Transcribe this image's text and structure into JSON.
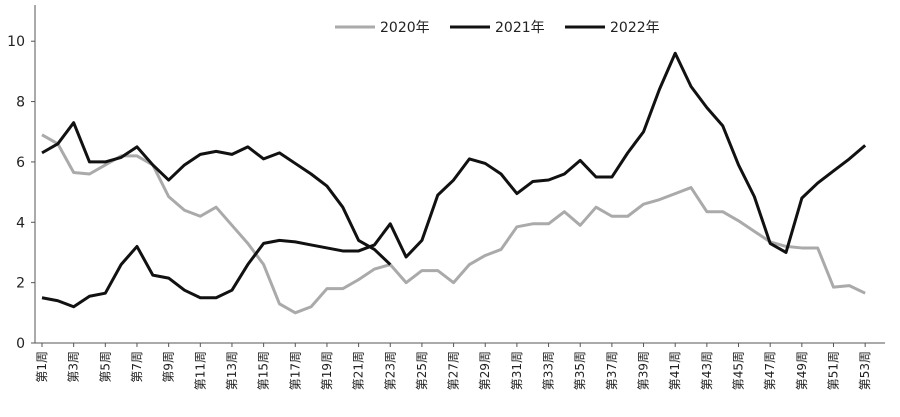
{
  "chart_data": {
    "type": "line",
    "categories": [
      "第1周",
      null,
      "第3周",
      null,
      "第5周",
      null,
      "第7周",
      null,
      "第9周",
      null,
      "第11周",
      null,
      "第13周",
      null,
      "第15周",
      null,
      "第17周",
      null,
      "第19周",
      null,
      "第21周",
      null,
      "第23周",
      null,
      "第25周",
      null,
      "第27周",
      null,
      "第29周",
      null,
      "第31周",
      null,
      "第33周",
      null,
      "第35周",
      null,
      "第37周",
      null,
      "第39周",
      null,
      "第41周",
      null,
      "第43周",
      null,
      "第45周",
      null,
      "第47周",
      null,
      "第49周",
      null,
      "第51周",
      null,
      "第53周"
    ],
    "series": [
      {
        "name": "2020年",
        "color": "#aaaaaa",
        "values": [
          6.9,
          6.6,
          5.65,
          5.6,
          5.9,
          6.2,
          6.2,
          5.9,
          4.85,
          4.4,
          4.2,
          4.5,
          3.9,
          3.3,
          2.6,
          1.3,
          1.0,
          1.2,
          1.8,
          1.8,
          2.1,
          2.45,
          2.6,
          2.0,
          2.4,
          2.4,
          2.0,
          2.6,
          2.9,
          3.1,
          3.85,
          3.95,
          3.95,
          4.35,
          3.9,
          4.5,
          4.2,
          4.2,
          4.6,
          4.75,
          4.95,
          5.15,
          4.35,
          4.35,
          4.05,
          3.7,
          3.35,
          3.2,
          3.15,
          3.15,
          1.85,
          1.9,
          1.65
        ]
      },
      {
        "name": "2021年",
        "color": "#111111",
        "values": [
          1.5,
          1.4,
          1.2,
          1.55,
          1.65,
          2.6,
          3.2,
          2.25,
          2.15,
          1.75,
          1.5,
          1.5,
          1.75,
          2.6,
          3.3,
          3.4,
          3.35,
          3.25,
          3.15,
          3.05,
          3.05,
          3.25,
          3.95,
          2.85,
          3.4,
          4.9,
          5.4,
          6.1,
          5.95,
          5.6,
          4.95,
          5.35,
          5.4,
          5.6,
          6.05,
          5.5,
          5.5,
          6.3,
          7.0,
          8.4,
          9.6,
          8.5,
          7.8,
          7.2,
          5.9,
          4.85,
          3.3,
          3.0,
          4.8,
          5.3,
          5.7,
          6.1,
          6.55
        ]
      },
      {
        "name": "2022年",
        "color": "#111111",
        "values": [
          6.3,
          6.6,
          7.3,
          6.0,
          6.0,
          6.15,
          6.5,
          5.9,
          5.4,
          5.9,
          6.25,
          6.35,
          6.25,
          6.5,
          6.1,
          6.3,
          5.95,
          5.6,
          5.2,
          4.5,
          3.4,
          3.1,
          2.6,
          null,
          null,
          null,
          null,
          null,
          null,
          null,
          null,
          null,
          null,
          null,
          null,
          null,
          null,
          null,
          null,
          null,
          null,
          null,
          null,
          null,
          null,
          null,
          null,
          null,
          null,
          null,
          null,
          null,
          null
        ]
      }
    ],
    "ylim": [
      0,
      11.2
    ],
    "yticks": [
      0,
      2,
      4,
      6,
      8,
      10
    ]
  }
}
